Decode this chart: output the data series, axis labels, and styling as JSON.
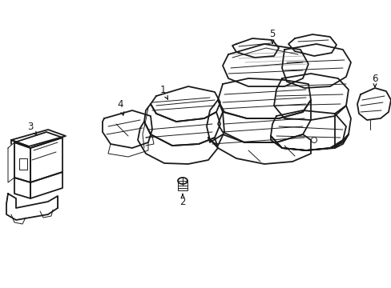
{
  "background_color": "#ffffff",
  "line_color": "#1a1a1a",
  "lw_main": 1.3,
  "lw_thin": 0.7,
  "lw_detail": 0.5,
  "label_fontsize": 8.5
}
